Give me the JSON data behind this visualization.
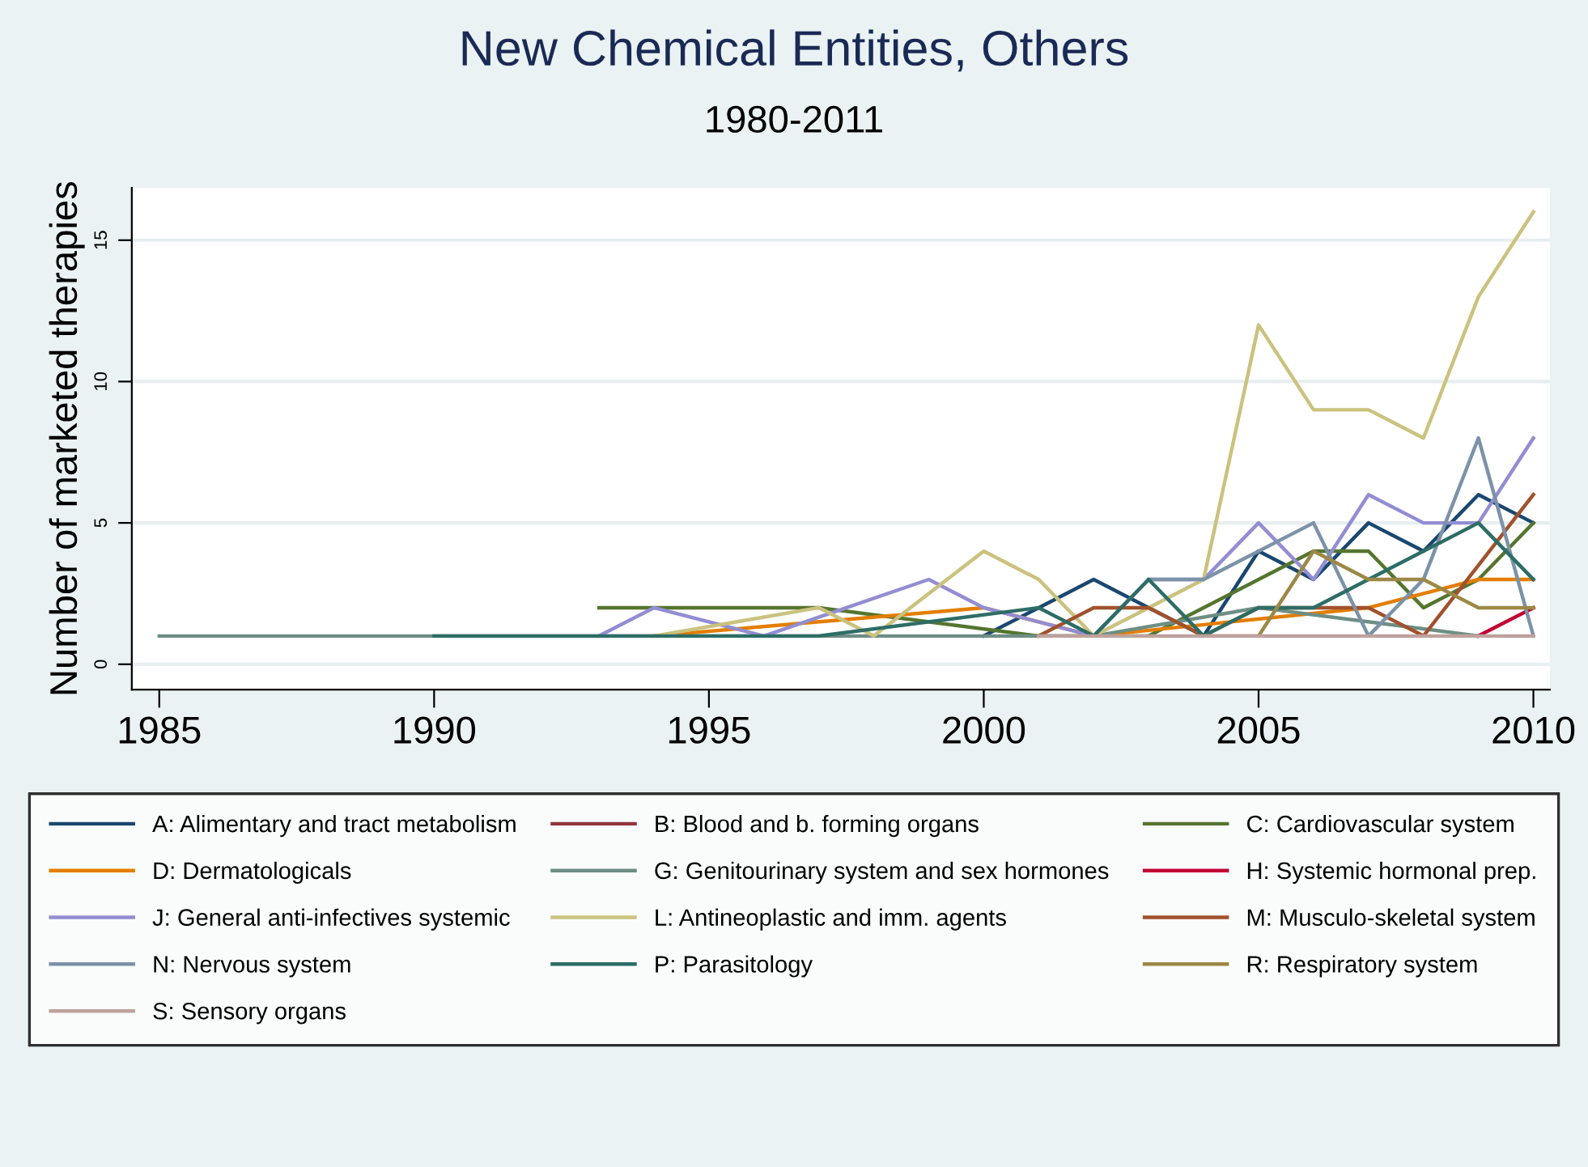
{
  "chart_data": {
    "type": "line",
    "title": "New Chemical Entities, Others",
    "subtitle": "1980-2011",
    "ylabel": "Number of marketed therapies",
    "xlim": [
      1984.5,
      2010.3
    ],
    "xticks": [
      1985,
      1990,
      1995,
      2000,
      2005,
      2010
    ],
    "ylim": [
      -0.9,
      16.85
    ],
    "yticks": [
      0,
      5,
      10,
      15
    ],
    "grid": "y",
    "legend": "bottom",
    "line_style": "solid",
    "marker": "none",
    "series": [
      {
        "name": "A: Alimentary and tract metabolism",
        "color": "#1a476f",
        "x": [
          2000,
          2001,
          2002,
          2003,
          2004,
          2005,
          2006,
          2007,
          2008,
          2009,
          2010
        ],
        "values": [
          1,
          2,
          3,
          2,
          1,
          4,
          3,
          5,
          4,
          6,
          5
        ]
      },
      {
        "name": "B: Blood and b. forming organs",
        "color": "#90353b"
      },
      {
        "name": "C: Cardiovascular system",
        "color": "#55752f",
        "x": [
          1993,
          1997,
          2001,
          2003,
          2006,
          2007,
          2008,
          2009,
          2010
        ],
        "values": [
          2,
          2,
          1,
          1,
          4,
          4,
          2,
          3,
          5
        ]
      },
      {
        "name": "D: Dermatologicals",
        "color": "#e37e00",
        "x": [
          1994,
          2000,
          2002,
          2007,
          2009,
          2010
        ],
        "values": [
          1,
          2,
          1,
          2,
          3,
          3
        ]
      },
      {
        "name": "G: Genitourinary system and sex hormones",
        "color": "#6e8e84",
        "x": [
          1985,
          1990,
          2002,
          2005,
          2009
        ],
        "values": [
          1,
          1,
          1,
          2,
          1
        ]
      },
      {
        "name": "H: Systemic hormonal prep.",
        "color": "#c10534",
        "x": [
          2009,
          2010
        ],
        "values": [
          1,
          2
        ]
      },
      {
        "name": "J: General anti-infectives systemic",
        "color": "#938dd2",
        "x": [
          1993,
          1994,
          1996,
          1999,
          2000,
          2002,
          2003,
          2004,
          2005,
          2006,
          2007,
          2008,
          2009,
          2010
        ],
        "values": [
          1,
          2,
          1,
          3,
          2,
          1,
          3,
          3,
          5,
          3,
          6,
          5,
          5,
          8
        ]
      },
      {
        "name": "L: Antineoplastic and imm. agents",
        "color": "#cac27e",
        "x": [
          1994,
          1997,
          1998,
          2000,
          2001,
          2002,
          2003,
          2004,
          2005,
          2006,
          2007,
          2008,
          2009,
          2010
        ],
        "values": [
          1,
          2,
          1,
          4,
          3,
          1,
          2,
          3,
          12,
          9,
          9,
          8,
          13,
          16
        ]
      },
      {
        "name": "M: Musculo-skeletal system",
        "color": "#a0522d",
        "x": [
          2001,
          2002,
          2003,
          2004,
          2005,
          2006,
          2007,
          2008,
          2010
        ],
        "values": [
          1,
          2,
          2,
          1,
          2,
          2,
          2,
          1,
          6
        ]
      },
      {
        "name": "N: Nervous system",
        "color": "#7b92a8",
        "x": [
          2003,
          2004,
          2006,
          2007,
          2008,
          2009,
          2010
        ],
        "values": [
          3,
          3,
          5,
          1,
          3,
          8,
          1
        ]
      },
      {
        "name": "P: Parasitology",
        "color": "#2d6d66",
        "x": [
          1990,
          1993,
          1997,
          2001,
          2002,
          2003,
          2004,
          2005,
          2006,
          2008,
          2009,
          2010
        ],
        "values": [
          1,
          1,
          1,
          2,
          1,
          3,
          1,
          2,
          2,
          4,
          5,
          3
        ]
      },
      {
        "name": "R: Respiratory system",
        "color": "#9c8847",
        "x": [
          2004,
          2005,
          2006,
          2007,
          2008,
          2009,
          2010
        ],
        "values": [
          1,
          1,
          4,
          3,
          3,
          2,
          2
        ]
      },
      {
        "name": "S: Sensory organs",
        "color": "#bfa19c",
        "x": [
          2001,
          2010
        ],
        "values": [
          1,
          1
        ]
      }
    ]
  }
}
